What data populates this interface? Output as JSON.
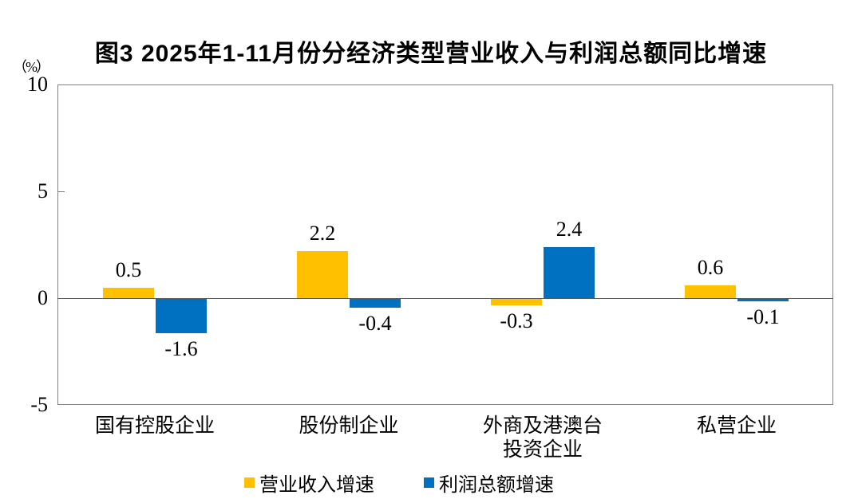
{
  "title": "图3 2025年1-11月份分经济类型营业收入与利润总额同比增速",
  "y_axis": {
    "unit_label": "（%）",
    "tick_labels": [
      "10",
      "5",
      "0",
      "-5"
    ]
  },
  "chart_data": {
    "type": "bar",
    "title": "图3 2025年1-11月份分经济类型营业收入与利润总额同比增速",
    "ylabel": "（%）",
    "categories": [
      "国有控股企业",
      "股份制企业",
      "外商及港澳台\n投资企业",
      "私营企业"
    ],
    "series": [
      {
        "name": "营业收入增速",
        "color": "#FFC000",
        "values": [
          0.5,
          2.2,
          -0.3,
          0.6
        ]
      },
      {
        "name": "利润总额增速",
        "color": "#0070C0",
        "values": [
          -1.6,
          -0.4,
          2.4,
          -0.1
        ]
      }
    ],
    "ylim": [
      -5,
      10
    ],
    "yticks": [
      10,
      5,
      0,
      -5
    ],
    "grid": false,
    "legend_position": "bottom",
    "axis_color": "#808080",
    "zero_line_color": "#595959"
  }
}
